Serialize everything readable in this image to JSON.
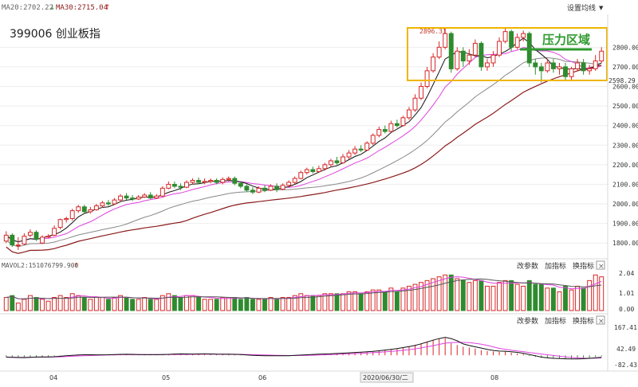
{
  "header": {
    "ma_items": [
      {
        "label": "MA20:2702.22",
        "arrow": "↓",
        "color": "#666666",
        "arrow_color": "#4a8a3a"
      },
      {
        "label": "MA30:2715.04",
        "arrow": "↑",
        "color": "#8b1a1a",
        "arrow_color": "#c0392b"
      }
    ],
    "settings_label": "设置均线",
    "title": "399006 创业板指"
  },
  "annotation": {
    "label": "压力区域",
    "high_label": "2896.31",
    "low_label": "2598.29",
    "box_color": "#f0b400",
    "label_color": "#2e9a2e"
  },
  "volume_panel": {
    "label": "MAVOL2:151076799.900",
    "label_arrow": "↑",
    "buttons": [
      "改参数",
      "加指标",
      "换指标"
    ],
    "close": "×",
    "ticks": [
      "2.04",
      "1.01",
      "0.00"
    ]
  },
  "macd_panel": {
    "buttons": [
      "改参数",
      "加指标",
      "换指标"
    ],
    "close": "×",
    "ticks": [
      "167.41",
      "42.49",
      "-82.43"
    ]
  },
  "x_axis": {
    "labels": [
      "04",
      "05",
      "06",
      "2020/06/30/二",
      "08"
    ]
  },
  "chart_data": {
    "type": "candlestick",
    "title": "399006 创业板指",
    "y_ticks": [
      1800,
      1900,
      2000,
      2100,
      2200,
      2300,
      2400,
      2500,
      2600,
      2700,
      2800
    ],
    "ylim": [
      1748,
      2960
    ],
    "price_high_marked": 2896.31,
    "price_low_marked": 2598.29,
    "volume_ylim": [
      0,
      2.04
    ],
    "macd_ylim": [
      -82.43,
      167.41
    ],
    "colors": {
      "up": "#d62728",
      "down": "#2e8b2e",
      "ma5": "#111111",
      "ma10": "#e040e0",
      "ma20": "#888888",
      "ma30": "#8b1a1a"
    },
    "candles": [
      [
        1810,
        1840,
        1860,
        1800,
        0.7
      ],
      [
        1840,
        1790,
        1850,
        1780,
        0.8
      ],
      [
        1790,
        1790,
        1830,
        1765,
        0.4
      ],
      [
        1795,
        1835,
        1850,
        1790,
        0.6
      ],
      [
        1840,
        1855,
        1870,
        1830,
        0.8
      ],
      [
        1855,
        1820,
        1865,
        1810,
        0.7
      ],
      [
        1800,
        1830,
        1840,
        1795,
        0.6
      ],
      [
        1830,
        1835,
        1845,
        1825,
        0.5
      ],
      [
        1840,
        1875,
        1890,
        1835,
        0.7
      ],
      [
        1880,
        1920,
        1925,
        1870,
        0.8
      ],
      [
        1920,
        1925,
        1935,
        1905,
        0.7
      ],
      [
        1925,
        1965,
        1975,
        1915,
        0.9
      ],
      [
        1965,
        1985,
        1995,
        1955,
        0.8
      ],
      [
        1985,
        1960,
        1995,
        1950,
        0.7
      ],
      [
        1960,
        1970,
        1985,
        1950,
        0.6
      ],
      [
        1970,
        1990,
        2000,
        1965,
        0.7
      ],
      [
        1990,
        2005,
        2015,
        1980,
        0.7
      ],
      [
        2005,
        2000,
        2020,
        1990,
        0.6
      ],
      [
        2000,
        2020,
        2030,
        1995,
        0.7
      ],
      [
        2020,
        2040,
        2050,
        2010,
        0.8
      ],
      [
        2040,
        2030,
        2055,
        2020,
        0.7
      ],
      [
        2030,
        2025,
        2045,
        2015,
        0.6
      ],
      [
        2025,
        2035,
        2045,
        2020,
        0.6
      ],
      [
        2035,
        2045,
        2055,
        2030,
        0.7
      ],
      [
        2045,
        2030,
        2060,
        2025,
        0.6
      ],
      [
        2030,
        2040,
        2050,
        2025,
        0.6
      ],
      [
        2040,
        2080,
        2090,
        2035,
        0.8
      ],
      [
        2080,
        2100,
        2115,
        2075,
        0.9
      ],
      [
        2100,
        2090,
        2115,
        2080,
        0.8
      ],
      [
        2090,
        2085,
        2105,
        2070,
        0.7
      ],
      [
        2085,
        2110,
        2120,
        2080,
        0.8
      ],
      [
        2110,
        2120,
        2130,
        2100,
        0.8
      ],
      [
        2120,
        2110,
        2135,
        2100,
        0.7
      ],
      [
        2110,
        2115,
        2130,
        2100,
        0.6
      ],
      [
        2115,
        2120,
        2130,
        2105,
        0.6
      ],
      [
        2120,
        2110,
        2130,
        2100,
        0.6
      ],
      [
        2110,
        2125,
        2135,
        2100,
        0.7
      ],
      [
        2125,
        2130,
        2140,
        2115,
        0.7
      ],
      [
        2130,
        2105,
        2140,
        2095,
        0.7
      ],
      [
        2105,
        2090,
        2115,
        2080,
        0.6
      ],
      [
        2090,
        2070,
        2100,
        2060,
        0.7
      ],
      [
        2070,
        2060,
        2085,
        2050,
        0.6
      ],
      [
        2060,
        2080,
        2090,
        2055,
        0.6
      ],
      [
        2080,
        2070,
        2095,
        2060,
        0.6
      ],
      [
        2070,
        2090,
        2100,
        2065,
        0.7
      ],
      [
        2090,
        2075,
        2105,
        2060,
        0.6
      ],
      [
        2075,
        2095,
        2105,
        2070,
        0.7
      ],
      [
        2095,
        2110,
        2120,
        2085,
        0.7
      ],
      [
        2110,
        2130,
        2140,
        2100,
        0.8
      ],
      [
        2130,
        2160,
        2170,
        2125,
        0.9
      ],
      [
        2160,
        2175,
        2185,
        2150,
        0.8
      ],
      [
        2175,
        2165,
        2190,
        2155,
        0.8
      ],
      [
        2165,
        2180,
        2195,
        2160,
        0.8
      ],
      [
        2180,
        2200,
        2210,
        2170,
        0.9
      ],
      [
        2200,
        2220,
        2230,
        2190,
        0.9
      ],
      [
        2220,
        2210,
        2240,
        2200,
        0.9
      ],
      [
        2210,
        2240,
        2255,
        2205,
        0.9
      ],
      [
        2240,
        2260,
        2275,
        2230,
        1.0
      ],
      [
        2260,
        2280,
        2295,
        2250,
        1.0
      ],
      [
        2280,
        2275,
        2300,
        2265,
        0.9
      ],
      [
        2275,
        2310,
        2320,
        2270,
        1.0
      ],
      [
        2310,
        2350,
        2360,
        2300,
        1.1
      ],
      [
        2350,
        2380,
        2395,
        2340,
        1.1
      ],
      [
        2380,
        2370,
        2400,
        2360,
        1.0
      ],
      [
        2370,
        2410,
        2425,
        2365,
        1.2
      ],
      [
        2410,
        2400,
        2430,
        2390,
        1.0
      ],
      [
        2400,
        2440,
        2450,
        2395,
        1.2
      ],
      [
        2440,
        2480,
        2495,
        2430,
        1.3
      ],
      [
        2480,
        2540,
        2560,
        2470,
        1.4
      ],
      [
        2540,
        2600,
        2620,
        2530,
        1.5
      ],
      [
        2600,
        2680,
        2700,
        2590,
        1.6
      ],
      [
        2680,
        2750,
        2770,
        2670,
        1.7
      ],
      [
        2750,
        2800,
        2830,
        2740,
        1.8
      ],
      [
        2800,
        2870,
        2896,
        2790,
        1.9
      ],
      [
        2870,
        2690,
        2880,
        2670,
        1.9
      ],
      [
        2690,
        2780,
        2800,
        2680,
        1.7
      ],
      [
        2780,
        2730,
        2800,
        2700,
        1.6
      ],
      [
        2730,
        2760,
        2790,
        2710,
        1.5
      ],
      [
        2760,
        2820,
        2840,
        2750,
        1.6
      ],
      [
        2820,
        2700,
        2830,
        2680,
        1.6
      ],
      [
        2700,
        2720,
        2740,
        2680,
        1.3
      ],
      [
        2720,
        2760,
        2780,
        2700,
        1.3
      ],
      [
        2760,
        2830,
        2850,
        2750,
        1.5
      ],
      [
        2830,
        2880,
        2900,
        2820,
        1.6
      ],
      [
        2880,
        2800,
        2890,
        2780,
        1.6
      ],
      [
        2800,
        2850,
        2870,
        2790,
        1.4
      ],
      [
        2850,
        2870,
        2885,
        2830,
        1.3
      ],
      [
        2870,
        2720,
        2880,
        2700,
        1.6
      ],
      [
        2720,
        2700,
        2740,
        2660,
        1.4
      ],
      [
        2700,
        2680,
        2720,
        2620,
        1.4
      ],
      [
        2680,
        2720,
        2740,
        2670,
        1.2
      ],
      [
        2720,
        2690,
        2740,
        2670,
        1.2
      ],
      [
        2690,
        2700,
        2720,
        2660,
        1.0
      ],
      [
        2700,
        2650,
        2720,
        2630,
        1.3
      ],
      [
        2650,
        2690,
        2700,
        2630,
        1.1
      ],
      [
        2690,
        2720,
        2740,
        2680,
        1.3
      ],
      [
        2720,
        2680,
        2740,
        2660,
        1.2
      ],
      [
        2680,
        2690,
        2710,
        2660,
        1.6
      ],
      [
        2690,
        2730,
        2760,
        2680,
        1.9
      ],
      [
        2730,
        2780,
        2800,
        2720,
        1.8
      ]
    ],
    "macd": [
      -10,
      -12,
      -14,
      -11,
      -8,
      -9,
      -10,
      -8,
      -5,
      -2,
      0,
      2,
      4,
      3,
      2,
      2,
      3,
      4,
      5,
      6,
      5,
      4,
      3,
      3,
      4,
      3,
      5,
      7,
      8,
      7,
      6,
      7,
      8,
      7,
      6,
      5,
      5,
      6,
      4,
      2,
      0,
      -2,
      -2,
      -3,
      -2,
      -3,
      -2,
      -1,
      1,
      3,
      5,
      6,
      7,
      8,
      10,
      11,
      13,
      15,
      17,
      18,
      20,
      24,
      28,
      31,
      36,
      40,
      46,
      52,
      60,
      70,
      80,
      90,
      95,
      100,
      70,
      60,
      50,
      45,
      40,
      30,
      25,
      22,
      20,
      22,
      15,
      10,
      8,
      -5,
      -10,
      -14,
      -16,
      -18,
      -18,
      -20,
      -20,
      -18,
      -16,
      -14,
      -10,
      -6
    ]
  }
}
